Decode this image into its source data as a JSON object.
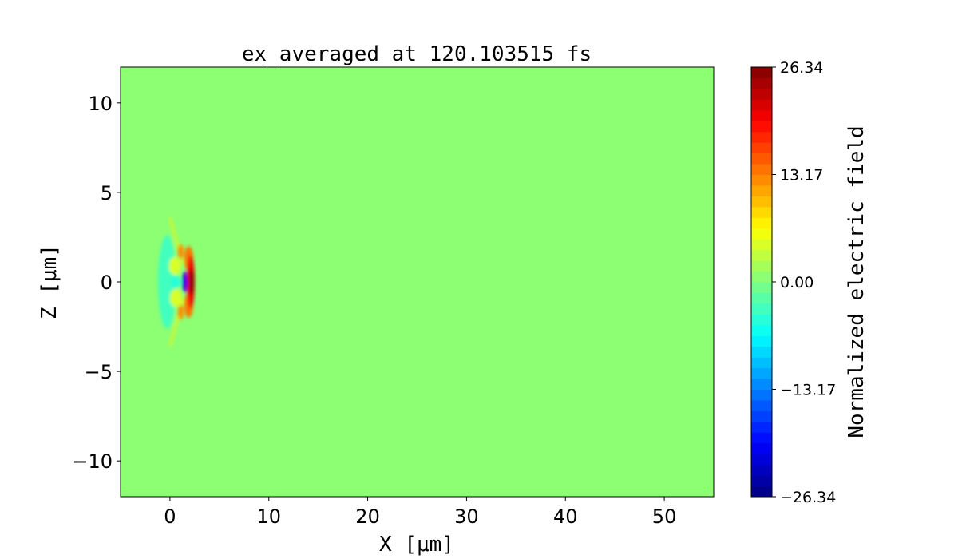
{
  "chart_data": {
    "type": "heatmap",
    "title": "ex_averaged at 120.103515 fs",
    "xlabel": "X [μm]",
    "ylabel": "Z [μm]",
    "xlim": [
      -5,
      55
    ],
    "ylim": [
      -12,
      12
    ],
    "xticks": [
      0,
      10,
      20,
      30,
      40,
      50
    ],
    "xtick_labels": [
      "0",
      "10",
      "20",
      "30",
      "40",
      "50"
    ],
    "yticks": [
      -10,
      -5,
      0,
      5,
      10
    ],
    "ytick_labels": [
      "−10",
      "−5",
      "0",
      "5",
      "10"
    ],
    "colormap": "jet",
    "colorbar": {
      "label": "Normalized electric field",
      "range": [
        -26.34,
        26.34
      ],
      "levels": 40,
      "ticks": [
        -26.34,
        -13.17,
        0.0,
        13.17,
        26.34
      ],
      "tick_labels": [
        "−26.34",
        "−13.17",
        "0.00",
        "13.17",
        "26.34"
      ]
    },
    "background_value": 0.0,
    "grid": false,
    "features": [
      {
        "x": -0.3,
        "z": 0.0,
        "rx": 0.9,
        "rz": 2.6,
        "value": -3.0
      },
      {
        "x": 0.5,
        "z": 0.9,
        "rx": 0.6,
        "rz": 0.5,
        "value": 4.0
      },
      {
        "x": 0.6,
        "z": -0.9,
        "rx": 0.6,
        "rz": 0.5,
        "value": 4.0
      },
      {
        "x": 0.6,
        "z": 0.0,
        "rx": 0.5,
        "rz": 0.35,
        "value": -5.0
      },
      {
        "x": 1.9,
        "z": 1.3,
        "rx": 0.45,
        "rz": 0.7,
        "value": 14.0
      },
      {
        "x": 1.9,
        "z": -1.3,
        "rx": 0.45,
        "rz": 0.7,
        "value": 14.0
      },
      {
        "x": 2.1,
        "z": 0.0,
        "rx": 0.4,
        "rz": 1.5,
        "value": 20.0
      },
      {
        "x": 2.2,
        "z": 0.0,
        "rx": 0.25,
        "rz": 0.7,
        "value": 26.0
      },
      {
        "x": 1.5,
        "z": 0.0,
        "rx": 0.25,
        "rz": 0.6,
        "value": -20.0
      },
      {
        "x": 1.1,
        "z": 1.7,
        "rx": 0.3,
        "rz": 0.4,
        "value": 12.0
      },
      {
        "x": 1.1,
        "z": -1.7,
        "rx": 0.3,
        "rz": 0.4,
        "value": 12.0
      }
    ]
  }
}
